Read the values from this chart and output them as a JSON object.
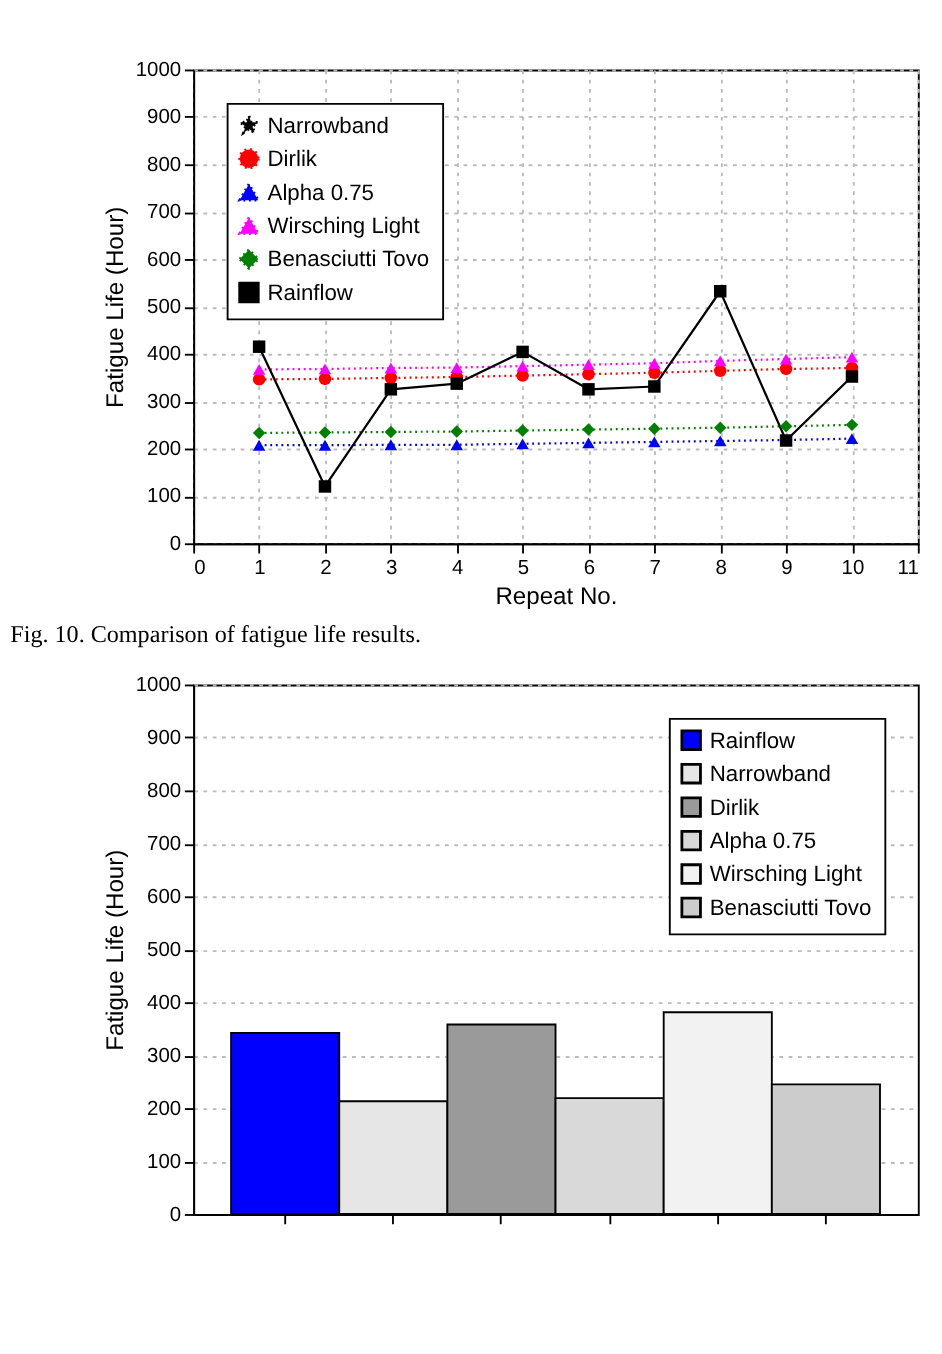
{
  "chart_data": [
    {
      "type": "line",
      "xlabel": "Repeat No.",
      "ylabel": "Fatigue Life (Hour)",
      "x": [
        1,
        2,
        3,
        4,
        5,
        6,
        7,
        8,
        9,
        10
      ],
      "xlim": [
        0,
        11
      ],
      "xticks": [
        0,
        1,
        2,
        3,
        4,
        5,
        6,
        7,
        8,
        9,
        10,
        11
      ],
      "ylim": [
        0,
        1000
      ],
      "yticks": [
        0,
        100,
        200,
        300,
        400,
        500,
        600,
        700,
        800,
        900,
        1000
      ],
      "grid": true,
      "legend": "top left",
      "annotations": [
        "Fig. 10.  Comparison of fatigue life results."
      ],
      "series": [
        {
          "name": "Narrowband",
          "color": "#000000",
          "marker": "star",
          "line_style": "dotted",
          "values": [
            null,
            null,
            null,
            null,
            null,
            null,
            null,
            null,
            null,
            null
          ]
        },
        {
          "name": "Dirlik",
          "color": "#ff0000",
          "marker": "circle",
          "line_style": "dotted",
          "values": [
            346,
            347,
            349,
            351,
            354,
            357,
            360,
            364,
            368,
            370
          ]
        },
        {
          "name": "Alpha 0.75",
          "color": "#0000ff",
          "marker": "triangle",
          "line_style": "dotted",
          "values": [
            207,
            207,
            208,
            208,
            210,
            212,
            214,
            216,
            218,
            221
          ]
        },
        {
          "name": "Wirsching Light",
          "color": "#ff00ff",
          "marker": "triangle",
          "line_style": "dotted",
          "values": [
            367,
            368,
            370,
            371,
            374,
            377,
            380,
            385,
            389,
            393
          ]
        },
        {
          "name": "Benasciutti Tovo",
          "color": "#008000",
          "marker": "diamond",
          "line_style": "dotted",
          "values": [
            233,
            234,
            235,
            236,
            238,
            240,
            242,
            244,
            247,
            250
          ]
        },
        {
          "name": "Rainflow",
          "color": "#000000",
          "marker": "square",
          "line_style": "solid",
          "values": [
            415,
            120,
            325,
            337,
            404,
            325,
            331,
            532,
            217,
            352
          ]
        }
      ]
    },
    {
      "type": "bar",
      "ylabel": "Fatigue Life (Hour)",
      "categories": [
        null,
        null,
        null,
        null,
        null,
        null
      ],
      "ylim": [
        0,
        1000
      ],
      "yticks": [
        0,
        100,
        200,
        300,
        400,
        500,
        600,
        700,
        800,
        900,
        1000
      ],
      "grid": "y",
      "legend": "top right",
      "tick_labels": "y",
      "series": [
        {
          "name": "Rainflow",
          "color": "#0000ff",
          "values": [
            342,
            null,
            null,
            null,
            null,
            null
          ]
        },
        {
          "name": "Narrowband",
          "color": "#e6e6e6",
          "values": [
            null,
            213,
            null,
            null,
            null,
            null
          ]
        },
        {
          "name": "Dirlik",
          "color": "#9a9a9a",
          "values": [
            null,
            null,
            358,
            null,
            null,
            null
          ]
        },
        {
          "name": "Alpha 0.75",
          "color": "#d9d9d9",
          "values": [
            null,
            null,
            null,
            219,
            null,
            null
          ]
        },
        {
          "name": "Wirsching Light",
          "color": "#f2f2f2",
          "values": [
            null,
            null,
            null,
            null,
            381,
            null
          ]
        },
        {
          "name": "Benasciutti Tovo",
          "color": "#cccccc",
          "values": [
            null,
            null,
            null,
            null,
            null,
            245
          ]
        }
      ]
    }
  ]
}
